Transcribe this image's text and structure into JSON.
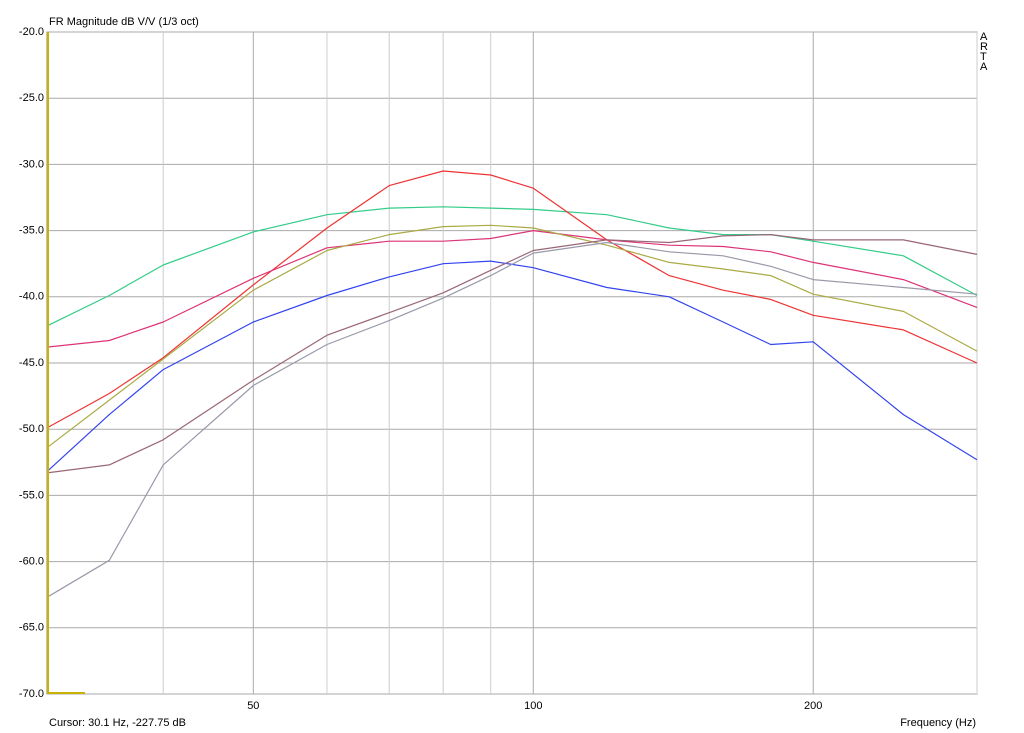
{
  "chart_data": {
    "type": "line",
    "title": "FR Magnitude dB V/V (1/3 oct)",
    "side_label": "ARTA",
    "cursor": "Cursor: 30.1 Hz, -227.75 dB",
    "x_label": "Frequency (Hz)",
    "x_log": true,
    "grid": true,
    "xlim": [
      30,
      300
    ],
    "xticks": [
      50,
      100,
      200
    ],
    "xgrid": [
      40,
      60,
      70,
      80,
      90,
      300
    ],
    "ylim": [
      -70,
      -20
    ],
    "yticks": [
      {
        "value": -20,
        "label": "-20.0"
      },
      {
        "value": -25,
        "label": "-25.0"
      },
      {
        "value": -30,
        "label": "-30.0"
      },
      {
        "value": -35,
        "label": "-35.0"
      },
      {
        "value": -40,
        "label": "-40.0"
      },
      {
        "value": -45,
        "label": "-45.0"
      },
      {
        "value": -50,
        "label": "-50.0"
      },
      {
        "value": -55,
        "label": "-55.0"
      },
      {
        "value": -60,
        "label": "-60.0"
      },
      {
        "value": -65,
        "label": "-65.0"
      },
      {
        "value": -70,
        "label": "-70.0"
      }
    ],
    "x": [
      30,
      35,
      40,
      50,
      60,
      70,
      80,
      90,
      100,
      120,
      140,
      160,
      180,
      200,
      250,
      300
    ],
    "series": [
      {
        "color": "#33cc88",
        "values": [
          -42.2,
          -39.9,
          -37.6,
          -35.1,
          -33.8,
          -33.3,
          -33.2,
          -33.3,
          -33.4,
          -33.8,
          -34.8,
          -35.3,
          -35.3,
          -35.8,
          -36.9,
          -39.9
        ]
      },
      {
        "color": "#ee3333",
        "values": [
          -49.9,
          -47.3,
          -44.6,
          -39.1,
          -34.8,
          -31.6,
          -30.5,
          -30.8,
          -31.8,
          -35.7,
          -38.4,
          -39.5,
          -40.2,
          -41.4,
          -42.5,
          -45.0
        ]
      },
      {
        "color": "#dd3377",
        "values": [
          -43.8,
          -43.3,
          -41.9,
          -38.6,
          -36.3,
          -35.8,
          -35.8,
          -35.6,
          -35.0,
          -35.7,
          -36.1,
          -36.2,
          -36.6,
          -37.4,
          -38.7,
          -40.8
        ]
      },
      {
        "color": "#aaaa44",
        "values": [
          -51.4,
          -47.8,
          -44.7,
          -39.5,
          -36.5,
          -35.3,
          -34.7,
          -34.6,
          -34.8,
          -36.1,
          -37.4,
          -37.9,
          -38.4,
          -39.8,
          -41.1,
          -44.1
        ]
      },
      {
        "color": "#3344ee",
        "values": [
          -53.2,
          -48.9,
          -45.5,
          -41.9,
          -39.9,
          -38.5,
          -37.5,
          -37.3,
          -37.8,
          -39.3,
          -40.0,
          -41.9,
          -43.6,
          -43.4,
          -48.9,
          -52.3
        ]
      },
      {
        "color": "#996677",
        "values": [
          -53.3,
          -52.7,
          -50.8,
          -46.3,
          -42.9,
          -41.2,
          -39.7,
          -38.0,
          -36.5,
          -35.7,
          -35.9,
          -35.4,
          -35.3,
          -35.7,
          -35.7,
          -36.8
        ]
      },
      {
        "color": "#9999aa",
        "values": [
          -62.7,
          -59.9,
          -52.7,
          -46.7,
          -43.6,
          -41.8,
          -40.1,
          -38.4,
          -36.7,
          -35.9,
          -36.6,
          -36.9,
          -37.7,
          -38.7,
          -39.3,
          -39.8
        ]
      }
    ]
  }
}
